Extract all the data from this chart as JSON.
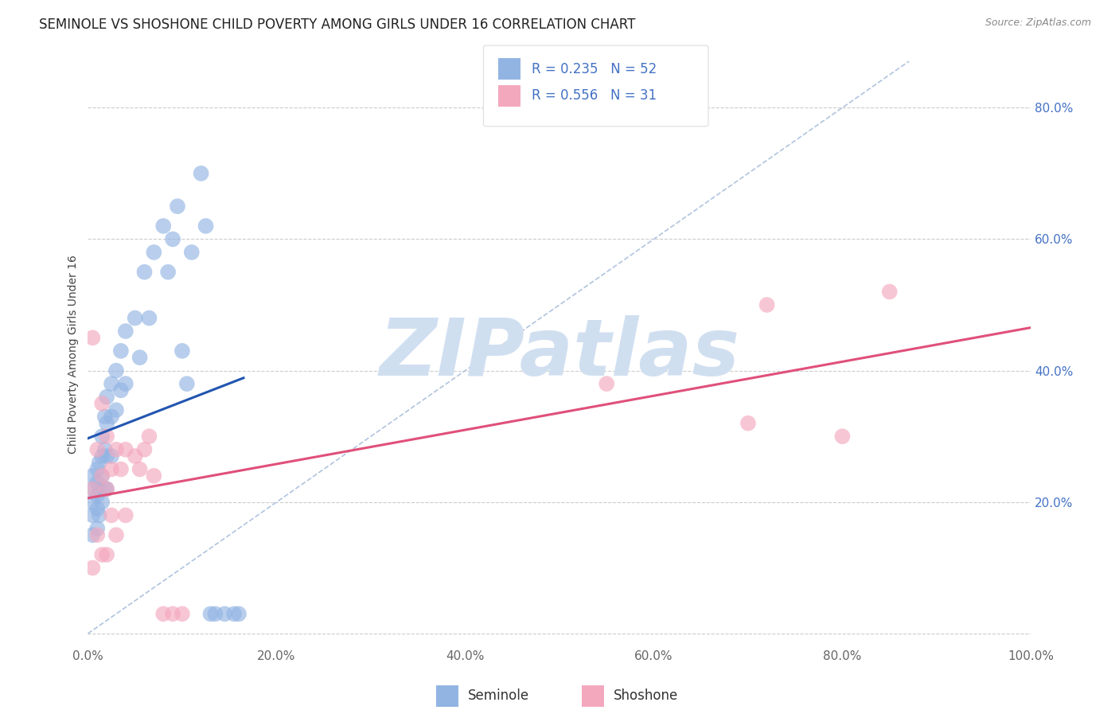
{
  "title": "SEMINOLE VS SHOSHONE CHILD POVERTY AMONG GIRLS UNDER 16 CORRELATION CHART",
  "source": "Source: ZipAtlas.com",
  "ylabel": "Child Poverty Among Girls Under 16",
  "xlim": [
    0,
    1.0
  ],
  "ylim": [
    -0.02,
    0.87
  ],
  "xticks": [
    0,
    0.2,
    0.4,
    0.6,
    0.8,
    1.0
  ],
  "xticklabels": [
    "0.0%",
    "20.0%",
    "40.0%",
    "60.0%",
    "80.0%",
    "100.0%"
  ],
  "yticks": [
    0.0,
    0.2,
    0.4,
    0.6,
    0.8
  ],
  "yticklabels": [
    "",
    "20.0%",
    "40.0%",
    "60.0%",
    "80.0%"
  ],
  "seminole_color": "#92b4e3",
  "shoshone_color": "#f4a8be",
  "seminole_line_color": "#2255b0",
  "shoshone_line_color": "#e0507a",
  "seminole_R": 0.235,
  "seminole_N": 52,
  "shoshone_R": 0.556,
  "shoshone_N": 31,
  "watermark": "ZIPatlas",
  "watermark_color": "#d0dff0",
  "background_color": "#ffffff",
  "grid_color": "#cccccc",
  "title_fontsize": 12,
  "source_fontsize": 9,
  "axis_label_fontsize": 10,
  "tick_fontsize": 11,
  "legend_fontsize": 12,
  "seminole_x": [
    0.005,
    0.005,
    0.005,
    0.005,
    0.005,
    0.01,
    0.01,
    0.01,
    0.01,
    0.01,
    0.012,
    0.012,
    0.012,
    0.015,
    0.015,
    0.015,
    0.015,
    0.018,
    0.018,
    0.018,
    0.02,
    0.02,
    0.02,
    0.02,
    0.025,
    0.025,
    0.025,
    0.03,
    0.03,
    0.035,
    0.035,
    0.04,
    0.04,
    0.05,
    0.055,
    0.06,
    0.065,
    0.07,
    0.08,
    0.085,
    0.09,
    0.095,
    0.1,
    0.105,
    0.11,
    0.12,
    0.125,
    0.13,
    0.135,
    0.145,
    0.155,
    0.16
  ],
  "seminole_y": [
    0.24,
    0.22,
    0.2,
    0.18,
    0.15,
    0.25,
    0.23,
    0.21,
    0.19,
    0.16,
    0.26,
    0.22,
    0.18,
    0.3,
    0.27,
    0.24,
    0.2,
    0.33,
    0.28,
    0.22,
    0.36,
    0.32,
    0.27,
    0.22,
    0.38,
    0.33,
    0.27,
    0.4,
    0.34,
    0.43,
    0.37,
    0.46,
    0.38,
    0.48,
    0.42,
    0.55,
    0.48,
    0.58,
    0.62,
    0.55,
    0.6,
    0.65,
    0.43,
    0.38,
    0.58,
    0.7,
    0.62,
    0.03,
    0.03,
    0.03,
    0.03,
    0.03
  ],
  "shoshone_x": [
    0.005,
    0.005,
    0.005,
    0.01,
    0.01,
    0.015,
    0.015,
    0.015,
    0.02,
    0.02,
    0.02,
    0.025,
    0.025,
    0.03,
    0.03,
    0.035,
    0.04,
    0.04,
    0.05,
    0.055,
    0.06,
    0.065,
    0.07,
    0.08,
    0.09,
    0.1,
    0.55,
    0.7,
    0.72,
    0.8,
    0.85
  ],
  "shoshone_y": [
    0.45,
    0.22,
    0.1,
    0.28,
    0.15,
    0.35,
    0.24,
    0.12,
    0.3,
    0.22,
    0.12,
    0.25,
    0.18,
    0.28,
    0.15,
    0.25,
    0.28,
    0.18,
    0.27,
    0.25,
    0.28,
    0.3,
    0.24,
    0.03,
    0.03,
    0.03,
    0.38,
    0.32,
    0.5,
    0.3,
    0.52
  ]
}
